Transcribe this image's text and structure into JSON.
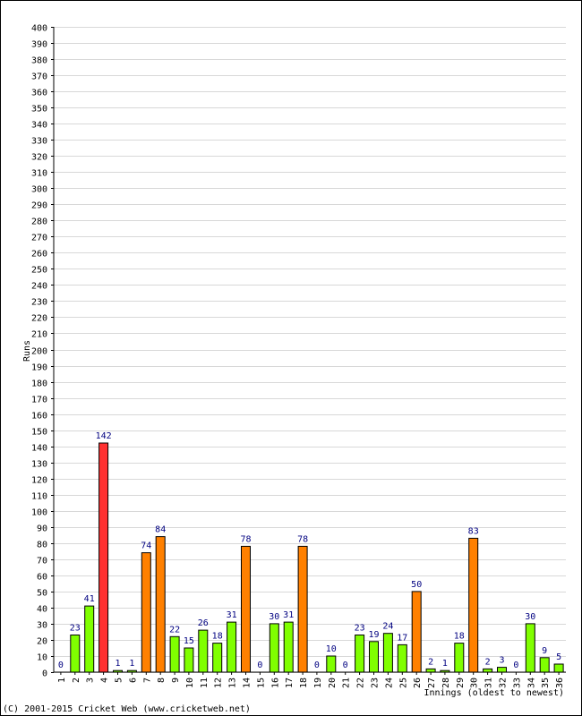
{
  "chart_data": {
    "type": "bar",
    "ylabel": "Runs",
    "xlabel": "Innings (oldest to newest)",
    "ylim": [
      0,
      400
    ],
    "ytick_step": 10,
    "grid": true,
    "categories": [
      "1",
      "2",
      "3",
      "4",
      "5",
      "6",
      "7",
      "8",
      "9",
      "10",
      "11",
      "12",
      "13",
      "14",
      "15",
      "16",
      "17",
      "18",
      "19",
      "20",
      "21",
      "22",
      "23",
      "24",
      "25",
      "26",
      "27",
      "28",
      "29",
      "30",
      "31",
      "32",
      "33",
      "34",
      "35",
      "36"
    ],
    "values": [
      0,
      23,
      41,
      142,
      1,
      1,
      74,
      84,
      22,
      15,
      26,
      18,
      31,
      78,
      0,
      30,
      31,
      78,
      0,
      10,
      0,
      23,
      19,
      24,
      17,
      50,
      2,
      1,
      18,
      83,
      2,
      3,
      0,
      30,
      9,
      5
    ],
    "colors": {
      "below_50": "#80ff00",
      "fifty_to_99": "#ff8000",
      "hundred_plus": "#ff3030",
      "outline": "#000000",
      "value_label": "#000080"
    }
  },
  "footer": {
    "copyright": "(C) 2001-2015 Cricket Web (www.cricketweb.net)"
  }
}
